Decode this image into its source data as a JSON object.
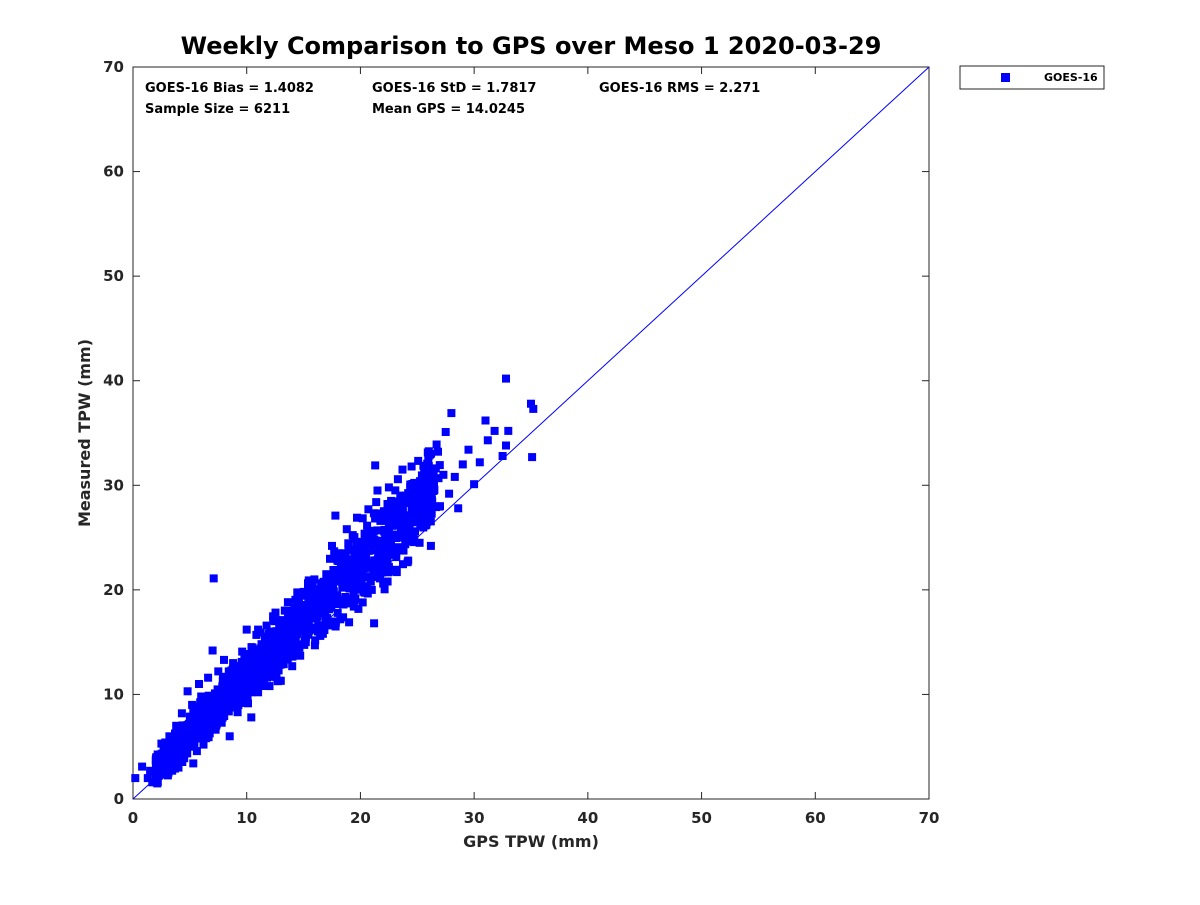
{
  "chart_data": {
    "type": "scatter",
    "title": "Weekly Comparison to GPS over Meso 1 2020-03-29",
    "xlabel": "GPS TPW (mm)",
    "ylabel": "Measured TPW (mm)",
    "xlim": [
      0,
      70
    ],
    "ylim": [
      0,
      70
    ],
    "xticks": [
      "0",
      "10",
      "20",
      "30",
      "40",
      "50",
      "60",
      "70"
    ],
    "yticks": [
      "0",
      "10",
      "20",
      "30",
      "40",
      "50",
      "60",
      "70"
    ],
    "grid": false,
    "legend_position": "top-right (outside plot)",
    "series": [
      {
        "name": "GOES-16",
        "color": "#0000ff",
        "marker": "square",
        "points": [
          [
            0.2,
            2.0
          ],
          [
            0.8,
            3.1
          ],
          [
            1.3,
            2.0
          ],
          [
            1.5,
            2.7
          ],
          [
            1.7,
            1.6
          ],
          [
            2.0,
            2.6
          ],
          [
            2.2,
            3.0
          ],
          [
            2.5,
            2.4
          ],
          [
            2.5,
            5.3
          ],
          [
            2.8,
            3.5
          ],
          [
            3.0,
            4.2
          ],
          [
            3.0,
            5.0
          ],
          [
            3.2,
            6.0
          ],
          [
            3.3,
            2.8
          ],
          [
            3.5,
            3.2
          ],
          [
            3.6,
            3.6
          ],
          [
            3.8,
            7.0
          ],
          [
            4.0,
            3.0
          ],
          [
            4.0,
            4.5
          ],
          [
            4.2,
            5.5
          ],
          [
            4.3,
            8.2
          ],
          [
            4.5,
            3.9
          ],
          [
            4.7,
            6.6
          ],
          [
            4.8,
            10.3
          ],
          [
            5.0,
            5.0
          ],
          [
            5.0,
            7.8
          ],
          [
            5.2,
            9.0
          ],
          [
            5.3,
            3.4
          ],
          [
            5.5,
            6.1
          ],
          [
            5.6,
            8.6
          ],
          [
            5.8,
            11.0
          ],
          [
            6.0,
            7.2
          ],
          [
            6.0,
            9.8
          ],
          [
            6.2,
            5.2
          ],
          [
            6.3,
            6.4
          ],
          [
            6.5,
            8.0
          ],
          [
            6.6,
            11.6
          ],
          [
            6.8,
            9.0
          ],
          [
            7.0,
            14.2
          ],
          [
            7.0,
            6.7
          ],
          [
            7.1,
            21.1
          ],
          [
            7.2,
            10.1
          ],
          [
            7.3,
            8.0
          ],
          [
            7.5,
            12.2
          ],
          [
            7.6,
            9.4
          ],
          [
            7.8,
            7.3
          ],
          [
            8.0,
            10.8
          ],
          [
            8.0,
            13.3
          ],
          [
            8.2,
            8.6
          ],
          [
            8.5,
            11.4
          ],
          [
            8.5,
            6.0
          ],
          [
            8.7,
            9.8
          ],
          [
            8.8,
            13.0
          ],
          [
            9.0,
            11.0
          ],
          [
            9.2,
            8.3
          ],
          [
            9.3,
            12.3
          ],
          [
            9.5,
            10.2
          ],
          [
            9.6,
            14.1
          ],
          [
            9.8,
            9.2
          ],
          [
            10.0,
            12.0
          ],
          [
            10.0,
            16.2
          ],
          [
            10.2,
            10.8
          ],
          [
            10.4,
            7.8
          ],
          [
            10.5,
            13.5
          ],
          [
            10.7,
            11.6
          ],
          [
            11.0,
            16.2
          ],
          [
            11.0,
            10.2
          ],
          [
            11.2,
            12.6
          ],
          [
            11.3,
            14.8
          ],
          [
            11.5,
            11.4
          ],
          [
            11.7,
            13.8
          ],
          [
            12.0,
            15.8
          ],
          [
            12.0,
            10.8
          ],
          [
            12.2,
            12.9
          ],
          [
            12.4,
            14.4
          ],
          [
            12.5,
            17.0
          ],
          [
            12.8,
            12.3
          ],
          [
            13.0,
            15.2
          ],
          [
            13.0,
            11.3
          ],
          [
            13.2,
            13.8
          ],
          [
            13.5,
            16.5
          ],
          [
            13.6,
            18.0
          ],
          [
            13.8,
            14.5
          ],
          [
            14.0,
            12.7
          ],
          [
            14.0,
            16.9
          ],
          [
            14.3,
            15.3
          ],
          [
            14.5,
            18.5
          ],
          [
            14.7,
            13.7
          ],
          [
            15.0,
            17.2
          ],
          [
            15.0,
            19.8
          ],
          [
            15.2,
            15.0
          ],
          [
            15.5,
            18.0
          ],
          [
            15.7,
            16.3
          ],
          [
            15.8,
            20.6
          ],
          [
            16.0,
            14.7
          ],
          [
            16.2,
            17.5
          ],
          [
            16.5,
            19.2
          ],
          [
            16.7,
            15.8
          ],
          [
            17.0,
            18.4
          ],
          [
            17.0,
            21.5
          ],
          [
            17.2,
            16.6
          ],
          [
            17.5,
            24.2
          ],
          [
            17.5,
            19.6
          ],
          [
            17.8,
            27.1
          ],
          [
            18.0,
            17.8
          ],
          [
            18.2,
            20.8
          ],
          [
            18.5,
            23.5
          ],
          [
            18.5,
            18.6
          ],
          [
            18.8,
            25.8
          ],
          [
            19.0,
            20.2
          ],
          [
            19.0,
            16.9
          ],
          [
            19.3,
            22.0
          ],
          [
            19.5,
            19.0
          ],
          [
            19.7,
            26.9
          ],
          [
            20.0,
            21.4
          ],
          [
            20.0,
            24.6
          ],
          [
            20.2,
            18.8
          ],
          [
            20.5,
            23.0
          ],
          [
            20.7,
            27.7
          ],
          [
            21.0,
            20.0
          ],
          [
            21.0,
            25.3
          ],
          [
            21.2,
            22.4
          ],
          [
            21.2,
            16.8
          ],
          [
            21.3,
            31.9
          ],
          [
            21.5,
            29.5
          ],
          [
            21.7,
            23.6
          ],
          [
            22.0,
            27.0
          ],
          [
            22.0,
            20.6
          ],
          [
            22.3,
            25.0
          ],
          [
            22.5,
            29.8
          ],
          [
            22.5,
            22.2
          ],
          [
            22.8,
            26.3
          ],
          [
            23.0,
            24.0
          ],
          [
            23.0,
            28.2
          ],
          [
            23.2,
            21.7
          ],
          [
            23.5,
            26.5
          ],
          [
            23.7,
            31.5
          ],
          [
            24.0,
            25.1
          ],
          [
            24.0,
            29.0
          ],
          [
            24.2,
            22.8
          ],
          [
            24.5,
            27.2
          ],
          [
            24.5,
            31.8
          ],
          [
            24.8,
            25.6
          ],
          [
            25.0,
            28.6
          ],
          [
            25.2,
            24.5
          ],
          [
            25.5,
            30.0
          ],
          [
            25.8,
            27.0
          ],
          [
            26.0,
            32.8
          ],
          [
            26.2,
            24.2
          ],
          [
            26.5,
            29.6
          ],
          [
            26.7,
            33.9
          ],
          [
            27.0,
            28.0
          ],
          [
            27.3,
            31.0
          ],
          [
            27.5,
            35.1
          ],
          [
            27.8,
            29.2
          ],
          [
            28.0,
            36.9
          ],
          [
            28.3,
            30.8
          ],
          [
            28.6,
            27.8
          ],
          [
            29.0,
            32.0
          ],
          [
            29.5,
            33.4
          ],
          [
            30.0,
            30.1
          ],
          [
            30.5,
            32.2
          ],
          [
            31.0,
            36.2
          ],
          [
            31.2,
            34.3
          ],
          [
            31.8,
            35.2
          ],
          [
            32.5,
            32.8
          ],
          [
            32.8,
            40.2
          ],
          [
            32.8,
            33.8
          ],
          [
            33.0,
            35.2
          ],
          [
            35.0,
            37.8
          ],
          [
            35.2,
            37.3
          ],
          [
            35.1,
            32.7
          ]
        ]
      }
    ],
    "reference_line": {
      "from": [
        0,
        0
      ],
      "to": [
        70,
        70
      ],
      "color": "#0000ff"
    },
    "stats": {
      "bias": "GOES-16 Bias = 1.4082",
      "std": "GOES-16 StD = 1.7817",
      "rms": "GOES-16 RMS = 2.271",
      "sample_size": "Sample Size = 6211",
      "mean_gps": "Mean GPS = 14.0245"
    }
  }
}
